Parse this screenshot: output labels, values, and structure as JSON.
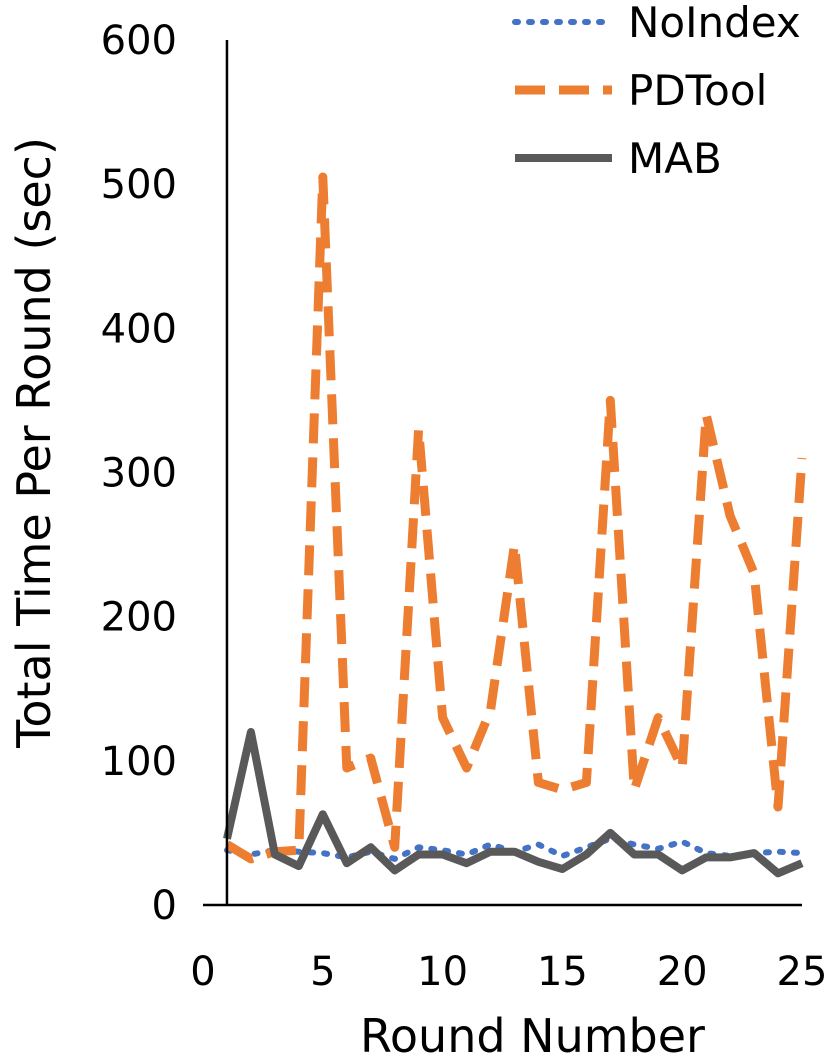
{
  "chart_data": {
    "type": "line",
    "title": "",
    "xlabel": "Round Number",
    "ylabel": "Total Time Per Round (sec)",
    "xlim": [
      0,
      25
    ],
    "ylim": [
      0,
      600
    ],
    "x_ticks": [
      0,
      5,
      10,
      15,
      20,
      25
    ],
    "y_ticks": [
      0,
      100,
      200,
      300,
      400,
      500,
      600
    ],
    "grid": false,
    "legend_position": "top-right",
    "x": [
      1,
      2,
      3,
      4,
      5,
      6,
      7,
      8,
      9,
      10,
      11,
      12,
      13,
      14,
      15,
      16,
      17,
      18,
      19,
      20,
      21,
      22,
      23,
      24,
      25
    ],
    "series": [
      {
        "name": "NoIndex",
        "style": "dotted",
        "color": "#4472C4",
        "values": [
          38,
          35,
          38,
          37,
          36,
          33,
          37,
          32,
          40,
          38,
          35,
          42,
          37,
          42,
          34,
          40,
          46,
          42,
          39,
          44,
          36,
          34,
          36,
          37,
          36
        ]
      },
      {
        "name": "PDTool",
        "style": "dashed",
        "color": "#ED7D31",
        "values": [
          42,
          32,
          37,
          38,
          505,
          95,
          102,
          40,
          330,
          130,
          95,
          135,
          250,
          85,
          80,
          85,
          350,
          80,
          130,
          95,
          340,
          270,
          230,
          68,
          310
        ]
      },
      {
        "name": "MAB",
        "style": "solid",
        "color": "#595959",
        "values": [
          46,
          120,
          35,
          27,
          63,
          29,
          40,
          24,
          35,
          35,
          29,
          37,
          37,
          30,
          25,
          35,
          50,
          35,
          35,
          24,
          33,
          33,
          36,
          22,
          29
        ]
      }
    ]
  }
}
